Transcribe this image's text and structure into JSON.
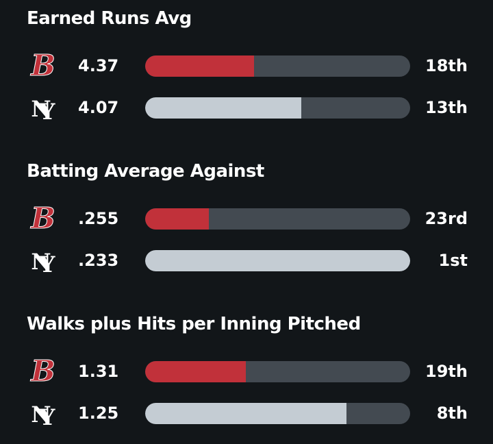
{
  "colors": {
    "background": "#121619",
    "track": "#434a51",
    "red_sox_bar": "#c1313a",
    "yankees_bar": "#c4ccd3",
    "text": "#ffffff"
  },
  "teams": {
    "red_sox": {
      "logo_icon": "red-sox-logo-icon",
      "logo_color": "#c1313a"
    },
    "yankees": {
      "logo_icon": "yankees-logo-icon",
      "logo_color": "#ffffff"
    }
  },
  "stats": [
    {
      "title": "Earned Runs Avg",
      "rows": [
        {
          "team": "red_sox",
          "value": "4.37",
          "rank": "18th",
          "bar_fill_fraction": 0.41
        },
        {
          "team": "yankees",
          "value": "4.07",
          "rank": "13th",
          "bar_fill_fraction": 0.59
        }
      ]
    },
    {
      "title": "Batting Average Against",
      "rows": [
        {
          "team": "red_sox",
          "value": ".255",
          "rank": "23rd",
          "bar_fill_fraction": 0.24
        },
        {
          "team": "yankees",
          "value": ".233",
          "rank": "1st",
          "bar_fill_fraction": 1.0
        }
      ]
    },
    {
      "title": "Walks plus Hits per Inning Pitched",
      "rows": [
        {
          "team": "red_sox",
          "value": "1.31",
          "rank": "19th",
          "bar_fill_fraction": 0.38
        },
        {
          "team": "yankees",
          "value": "1.25",
          "rank": "8th",
          "bar_fill_fraction": 0.76
        }
      ]
    }
  ]
}
